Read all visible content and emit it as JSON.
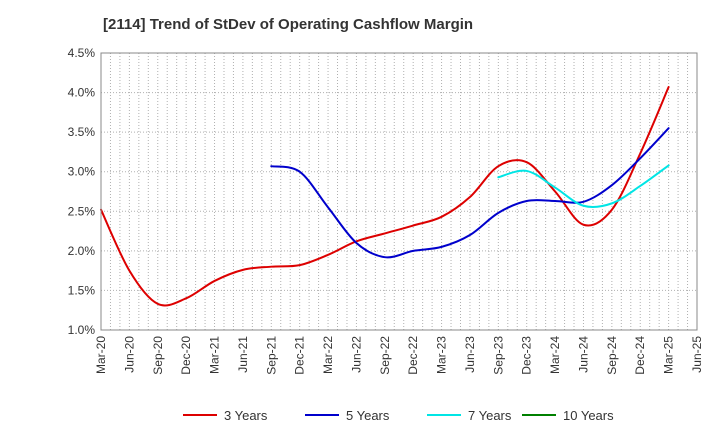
{
  "chart_data": {
    "type": "line",
    "title": "[2114]  Trend of StDev of Operating Cashflow Margin",
    "xlabel": "",
    "ylabel": "",
    "x_ticks": [
      "Mar-20",
      "Jun-20",
      "Sep-20",
      "Dec-20",
      "Mar-21",
      "Jun-21",
      "Sep-21",
      "Dec-21",
      "Mar-22",
      "Jun-22",
      "Sep-22",
      "Dec-22",
      "Mar-23",
      "Jun-23",
      "Sep-23",
      "Dec-23",
      "Mar-24",
      "Jun-24",
      "Sep-24",
      "Dec-24",
      "Mar-25",
      "Jun-25"
    ],
    "y_ticks": [
      "1.0%",
      "1.5%",
      "2.0%",
      "2.5%",
      "3.0%",
      "3.5%",
      "4.0%",
      "4.5%"
    ],
    "ylim": [
      1.0,
      4.5
    ],
    "grid": true,
    "legend_position": "bottom",
    "series": [
      {
        "name": "3 Years",
        "color": "#dd0000",
        "points": [
          [
            "Mar-20",
            2.52
          ],
          [
            "Jun-20",
            1.75
          ],
          [
            "Sep-20",
            1.33
          ],
          [
            "Dec-20",
            1.4
          ],
          [
            "Mar-21",
            1.62
          ],
          [
            "Jun-21",
            1.76
          ],
          [
            "Sep-21",
            1.8
          ],
          [
            "Dec-21",
            1.82
          ],
          [
            "Mar-22",
            1.95
          ],
          [
            "Jun-22",
            2.12
          ],
          [
            "Sep-22",
            2.22
          ],
          [
            "Dec-22",
            2.32
          ],
          [
            "Mar-23",
            2.43
          ],
          [
            "Jun-23",
            2.68
          ],
          [
            "Sep-23",
            3.07
          ],
          [
            "Dec-23",
            3.12
          ],
          [
            "Mar-24",
            2.75
          ],
          [
            "Jun-24",
            2.33
          ],
          [
            "Sep-24",
            2.52
          ],
          [
            "Dec-24",
            3.23
          ],
          [
            "Mar-25",
            4.07
          ]
        ]
      },
      {
        "name": "5 Years",
        "color": "#0000cc",
        "points": [
          [
            "Sep-21",
            3.07
          ],
          [
            "Dec-21",
            3.0
          ],
          [
            "Mar-22",
            2.55
          ],
          [
            "Jun-22",
            2.1
          ],
          [
            "Sep-22",
            1.92
          ],
          [
            "Dec-22",
            2.0
          ],
          [
            "Mar-23",
            2.05
          ],
          [
            "Jun-23",
            2.2
          ],
          [
            "Sep-23",
            2.48
          ],
          [
            "Dec-23",
            2.63
          ],
          [
            "Mar-24",
            2.63
          ],
          [
            "Jun-24",
            2.62
          ],
          [
            "Sep-24",
            2.83
          ],
          [
            "Dec-24",
            3.17
          ],
          [
            "Mar-25",
            3.55
          ]
        ]
      },
      {
        "name": "7 Years",
        "color": "#00e5e5",
        "points": [
          [
            "Sep-23",
            2.93
          ],
          [
            "Dec-23",
            3.01
          ],
          [
            "Mar-24",
            2.8
          ],
          [
            "Jun-24",
            2.57
          ],
          [
            "Sep-24",
            2.6
          ],
          [
            "Dec-24",
            2.82
          ],
          [
            "Mar-25",
            3.08
          ]
        ]
      },
      {
        "name": "10 Years",
        "color": "#008000",
        "points": []
      }
    ]
  }
}
